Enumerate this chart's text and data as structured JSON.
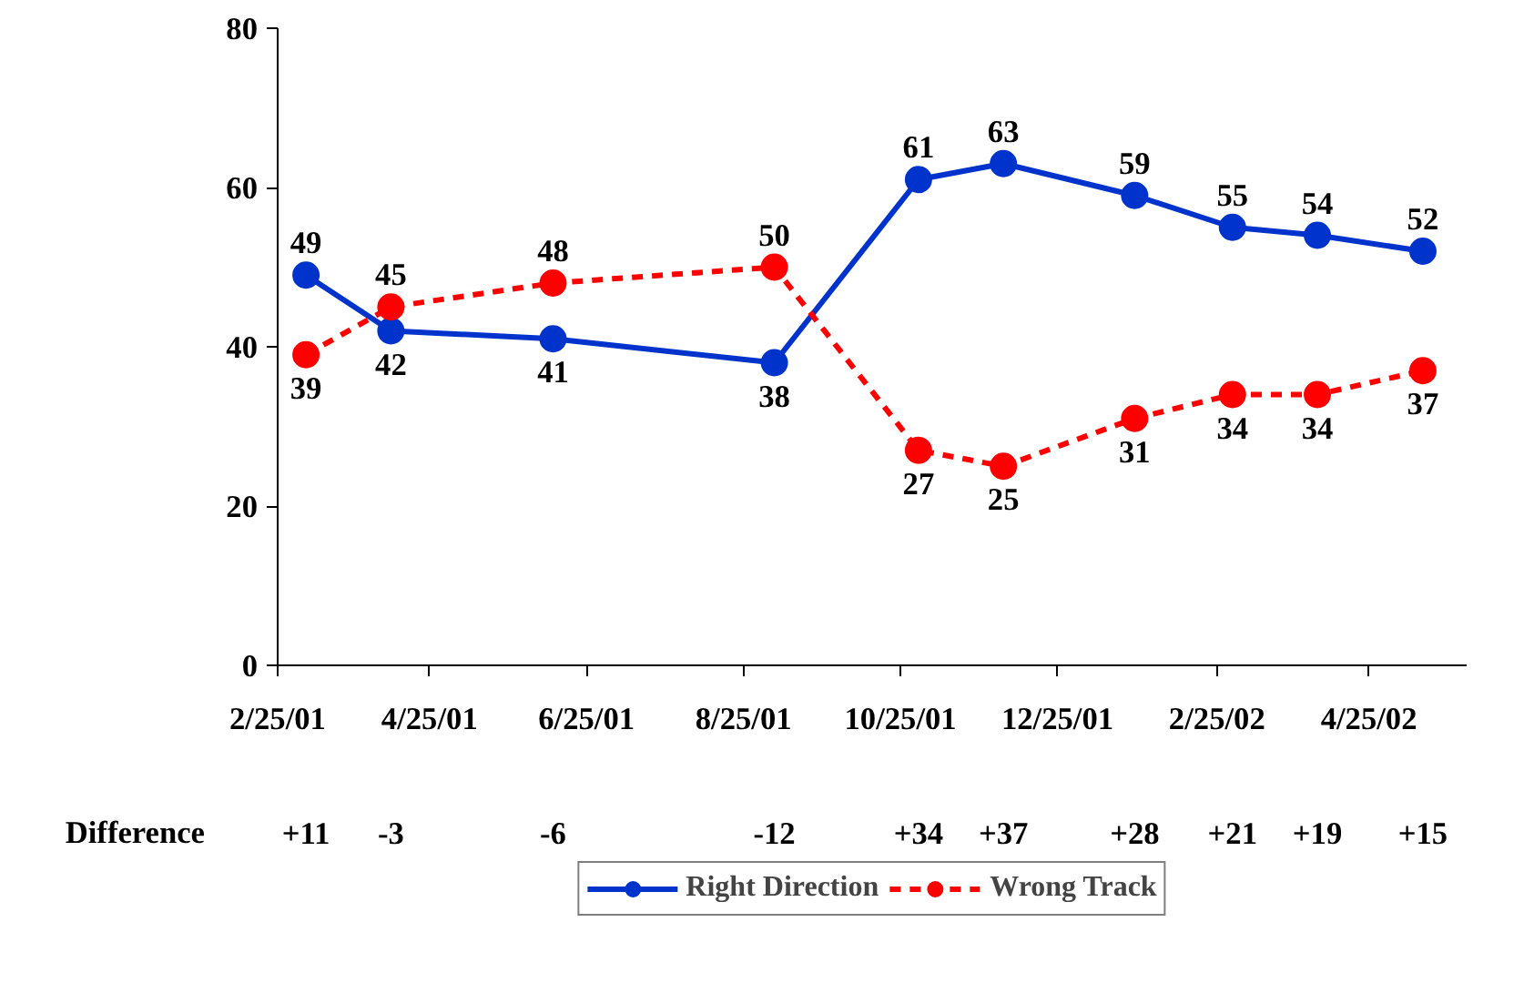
{
  "chart_data": {
    "type": "line",
    "x": [
      "2001-03-08",
      "2001-04-10",
      "2001-06-12",
      "2001-09-06",
      "2001-11-01",
      "2001-12-04",
      "2002-01-24",
      "2002-03-03",
      "2002-04-05",
      "2002-05-16"
    ],
    "series": [
      {
        "name": "Right Direction",
        "color": "#0033cc",
        "values": [
          49,
          42,
          41,
          38,
          61,
          63,
          59,
          55,
          54,
          52
        ],
        "line_style": "solid"
      },
      {
        "name": "Wrong Track",
        "color": "#ff0000",
        "values": [
          39,
          45,
          48,
          50,
          27,
          25,
          31,
          34,
          34,
          37
        ],
        "line_style": "dashed"
      }
    ],
    "xlim": [
      "2001-02-25",
      "2002-06-02"
    ],
    "xticks": [
      {
        "value": "2001-02-25",
        "label": "2/25/01"
      },
      {
        "value": "2001-04-25",
        "label": "4/25/01"
      },
      {
        "value": "2001-06-25",
        "label": "6/25/01"
      },
      {
        "value": "2001-08-25",
        "label": "8/25/01"
      },
      {
        "value": "2001-10-25",
        "label": "10/25/01"
      },
      {
        "value": "2001-12-25",
        "label": "12/25/01"
      },
      {
        "value": "2002-02-25",
        "label": "2/25/02"
      },
      {
        "value": "2002-04-25",
        "label": "4/25/02"
      }
    ],
    "ylim": [
      0,
      80
    ],
    "yticks": [
      0,
      20,
      40,
      60,
      80
    ],
    "annotations": [
      "Difference",
      "+11",
      "-3",
      "-6",
      "-12",
      "+34",
      "+37",
      "+28",
      "+21",
      "+19",
      "+15"
    ],
    "data_labels": true,
    "marker": "circle",
    "legend": "bottom",
    "grid": false
  }
}
